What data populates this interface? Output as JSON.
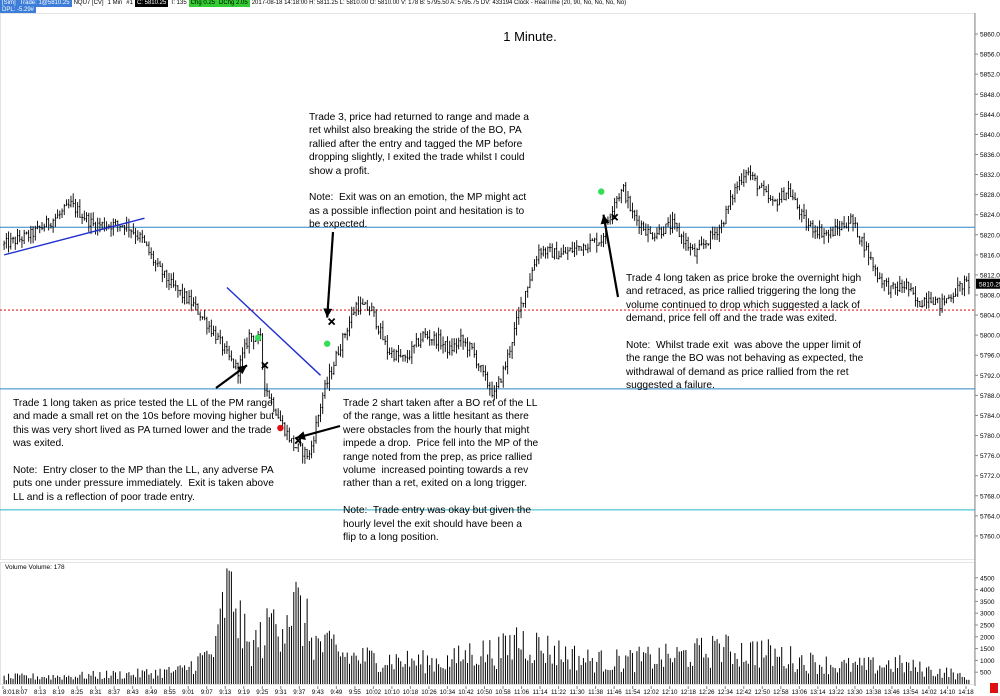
{
  "header": {
    "left_label": "[Sim]",
    "trade_label": "Trade: 1@5810.25",
    "instrument": "NQU7 [CV]",
    "interval": "1 Min",
    "flag": "#1",
    "close_label": "C: 5810.25",
    "tick_label": "T: 135",
    "chg_label": "Chg 0.25",
    "dchg_label": "DChg 2.05",
    "info": "2017-08-18 14:18:00  H: 5811.25  L: 5810.00  O: 5810.00  V: 178  B: 5795.50  A: 5795.75  DV: 433194  Clock - RealTime  (20, 90, No, No, No, No)",
    "dpl": "DPL: -5.29#"
  },
  "colors": {
    "background": "#ffffff",
    "candles": "#000000",
    "trendline": "#1f2fd0",
    "range_level": "#2a86c8",
    "low_level": "#2ab5c8",
    "dotted_level": "#e02020",
    "entry_green": "#33dd55",
    "entry_red": "#dd1111",
    "exit_marker": "#000000"
  },
  "annotations": {
    "t1": "Trade 1 long taken as price tested the LL of the PM range\nand made a small ret on the 10s before moving higher but\nthis was very short lived as PA turned lower and the trade\nwas exited.\n\nNote:  Entry closer to the MP than the LL, any adverse PA\nputs one under pressure immediately.  Exit is taken above\nLL and is a reflection of poor trade entry.",
    "t2": "Trade 2 shart taken after a BO ret of the LL\nof the range, was a little hesitant as there\nwere obstacles from the hourly that might\nimpede a drop.  Price fell into the MP of the\nrange noted from the prep, as price rallied\nvolume  increased pointing towards a rev\nrather than a ret, exited on a long trigger.\n\nNote:  Trade entry was okay but given the\nhourly level the exit should have been a\nflip to a long position.",
    "t3": "Trade 3, price had returned to range and made a\nret whilst also breaking the stride of the BO, PA\nrallied after the entry and tagged the MP before\ndropping slightly, I exited the trade whilst I could\nshow a profit.\n\nNote:  Exit was on an emotion, the MP might act\nas a possible inflection point and hesitation is to\nbe expected.",
    "t4": "Trade 4 long taken as price broke the overnight high\nand retraced, as price rallied triggering the long the\nvolume continued to drop which suggested a lack of\ndemand, price fell off and the trade was exited.\n\nNote:  Whilst trade exit  was above the upper limit of\nthe range the BO was not behaving as expected, the\nwithdrawal of demand as price rallied from the ret\nsuggested a failure."
  },
  "chart_data": [
    {
      "type": "candlestick",
      "title": "1 Minute.",
      "ylim": [
        5756,
        5862
      ],
      "y_ticks": [
        5760,
        5764,
        5768,
        5772,
        5776,
        5780,
        5784,
        5788,
        5792,
        5796,
        5800,
        5804,
        5808,
        5812,
        5816,
        5820,
        5824,
        5828,
        5832,
        5836,
        5840,
        5844,
        5848,
        5852,
        5856,
        5860
      ],
      "y_tick_labels": [
        "5760.00",
        "5764.00",
        "5768.00",
        "5772.00",
        "5776.00",
        "5780.00",
        "5784.00",
        "5788.00",
        "5792.00",
        "5796.00",
        "5800.00",
        "5804.00",
        "5808.00",
        "5812.00",
        "5816.00",
        "5820.00",
        "5824.00",
        "5828.00",
        "5832.00",
        "5836.00",
        "5840.00",
        "5844.00",
        "5848.00",
        "5852.00",
        "5856.00",
        "5860.00"
      ],
      "last_price_label": "5810.25",
      "x_tick_labels": [
        "8:01",
        "8:07",
        "8:13",
        "8:19",
        "8:25",
        "8:31",
        "8:37",
        "8:43",
        "8:49",
        "8:55",
        "9:01",
        "9:07",
        "9:13",
        "9:19",
        "9:25",
        "9:31",
        "9:37",
        "9:43",
        "9:49",
        "9:55",
        "10:02",
        "10:10",
        "10:18",
        "10:26",
        "10:34",
        "10:42",
        "10:50",
        "10:58",
        "11:06",
        "11:14",
        "11:22",
        "11:30",
        "11:38",
        "11:46",
        "11:54",
        "12:02",
        "12:10",
        "12:18",
        "12:26",
        "12:34",
        "12:42",
        "12:50",
        "12:58",
        "13:06",
        "13:14",
        "13:22",
        "13:30",
        "13:38",
        "13:46",
        "13:54",
        "14:02",
        "14:10",
        "14:18"
      ],
      "horizontal_levels": [
        {
          "value": 5821.5,
          "style": "solid",
          "role": "range_level"
        },
        {
          "value": 5805.0,
          "style": "dotted",
          "role": "dotted_level"
        },
        {
          "value": 5789.3,
          "style": "solid",
          "role": "range_level"
        },
        {
          "value": 5765.2,
          "style": "solid",
          "role": "low_level"
        }
      ],
      "key_points": [
        [
          0,
          5818
        ],
        [
          12,
          5820
        ],
        [
          25,
          5824
        ],
        [
          30,
          5826
        ],
        [
          40,
          5822
        ],
        [
          55,
          5822
        ],
        [
          62,
          5819
        ],
        [
          68,
          5814
        ],
        [
          75,
          5810
        ],
        [
          85,
          5806
        ],
        [
          95,
          5800
        ],
        [
          100,
          5796
        ],
        [
          105,
          5793
        ],
        [
          110,
          5800
        ],
        [
          115,
          5799
        ],
        [
          117,
          5790
        ],
        [
          122,
          5785
        ],
        [
          125,
          5782
        ],
        [
          130,
          5778
        ],
        [
          137,
          5776
        ],
        [
          143,
          5788
        ],
        [
          150,
          5797
        ],
        [
          158,
          5806
        ],
        [
          165,
          5805
        ],
        [
          172,
          5797
        ],
        [
          180,
          5795
        ],
        [
          188,
          5800
        ],
        [
          195,
          5799
        ],
        [
          200,
          5797
        ],
        [
          205,
          5799
        ],
        [
          210,
          5797
        ],
        [
          215,
          5792
        ],
        [
          220,
          5788
        ],
        [
          225,
          5794
        ],
        [
          232,
          5806
        ],
        [
          240,
          5817
        ],
        [
          250,
          5816
        ],
        [
          260,
          5818
        ],
        [
          268,
          5819
        ],
        [
          274,
          5827
        ],
        [
          278,
          5829
        ],
        [
          282,
          5824
        ],
        [
          290,
          5820
        ],
        [
          300,
          5822
        ],
        [
          310,
          5816
        ],
        [
          322,
          5822
        ],
        [
          328,
          5829
        ],
        [
          333,
          5833
        ],
        [
          338,
          5830
        ],
        [
          345,
          5826
        ],
        [
          352,
          5829
        ],
        [
          360,
          5822
        ],
        [
          370,
          5820
        ],
        [
          380,
          5823
        ],
        [
          386,
          5818
        ],
        [
          392,
          5812
        ],
        [
          398,
          5809
        ],
        [
          405,
          5810
        ],
        [
          410,
          5806
        ],
        [
          415,
          5808
        ],
        [
          420,
          5806
        ],
        [
          425,
          5808
        ],
        [
          430,
          5810
        ],
        [
          433,
          5810.25
        ]
      ],
      "trendlines": [
        {
          "from": [
            0,
            5816
          ],
          "to": [
            63,
            5823.3
          ]
        },
        {
          "from": [
            100,
            5809.5
          ],
          "to": [
            142,
            5792
          ]
        }
      ],
      "markers": [
        {
          "type": "entry",
          "direction": "long",
          "color": "green",
          "x": 114,
          "y": 5799.5
        },
        {
          "type": "exit",
          "x": 117,
          "y": 5794
        },
        {
          "type": "entry",
          "direction": "short",
          "color": "red",
          "x": 124,
          "y": 5781.5
        },
        {
          "type": "exit",
          "x": 132,
          "y": 5779
        },
        {
          "type": "entry",
          "direction": "long",
          "color": "green",
          "x": 145,
          "y": 5798.3
        },
        {
          "type": "exit",
          "x": 147,
          "y": 5802.7
        },
        {
          "type": "entry",
          "direction": "long",
          "color": "green",
          "x": 268,
          "y": 5828.6
        },
        {
          "type": "exit",
          "x": 274,
          "y": 5823.5
        }
      ],
      "arrows": [
        {
          "label": "t1",
          "tip": [
            109,
            5794
          ]
        },
        {
          "label": "t2",
          "tip": [
            131,
            5779.5
          ]
        },
        {
          "label": "t3",
          "tip": [
            145,
            5803.5
          ]
        },
        {
          "label": "t4",
          "tip": [
            269,
            5824
          ]
        }
      ]
    },
    {
      "type": "bar",
      "title": "Volume",
      "legend_label": "Volume: 178",
      "ylim": [
        0,
        5000
      ],
      "y_ticks": [
        500,
        1000,
        1500,
        2000,
        2500,
        3000,
        3500,
        4000,
        4500
      ],
      "y_tick_labels": [
        "500",
        "1000",
        "1500",
        "2000",
        "2500",
        "3000",
        "3500",
        "4000",
        "4500"
      ],
      "key_points": [
        [
          0,
          300
        ],
        [
          30,
          350
        ],
        [
          60,
          450
        ],
        [
          80,
          600
        ],
        [
          95,
          1500
        ],
        [
          100,
          4300
        ],
        [
          110,
          1500
        ],
        [
          120,
          2500
        ],
        [
          130,
          3600
        ],
        [
          140,
          1800
        ],
        [
          155,
          1200
        ],
        [
          170,
          1100
        ],
        [
          185,
          1000
        ],
        [
          200,
          1000
        ],
        [
          210,
          1400
        ],
        [
          222,
          1400
        ],
        [
          232,
          1900
        ],
        [
          245,
          1500
        ],
        [
          260,
          1100
        ],
        [
          270,
          1000
        ],
        [
          285,
          1100
        ],
        [
          300,
          1200
        ],
        [
          320,
          1500
        ],
        [
          340,
          1400
        ],
        [
          360,
          1000
        ],
        [
          375,
          800
        ],
        [
          390,
          800
        ],
        [
          400,
          900
        ],
        [
          415,
          600
        ],
        [
          425,
          500
        ],
        [
          433,
          178
        ]
      ],
      "spikes": [
        [
          100,
          4900
        ],
        [
          104,
          3200
        ],
        [
          120,
          3000
        ],
        [
          130,
          3900
        ],
        [
          148,
          2100
        ],
        [
          222,
          2000
        ],
        [
          230,
          2400
        ],
        [
          320,
          1900
        ],
        [
          338,
          1800
        ]
      ]
    }
  ]
}
